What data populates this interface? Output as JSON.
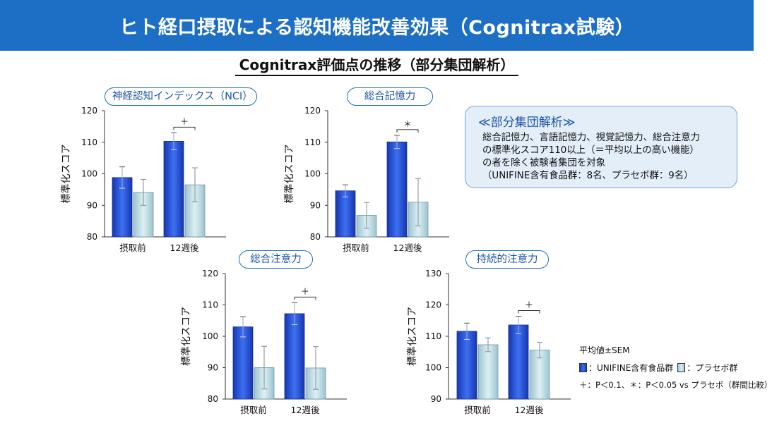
{
  "header": {
    "title": "ヒト経口摂取による認知機能改善効果（Cognitrax試験）"
  },
  "subtitle": "Cognitrax評価点の推移（部分集団解析）",
  "note": {
    "heading": "≪部分集団解析≫",
    "lines": [
      "総合記憶力、言語記憶力、視覚記憶力、総合注意力",
      "の標準化スコア110以上（＝平均以上の高い機能）",
      "の者を除く被験者集団を対象",
      "（UNIFINE含有食品群：8名、プラセボ群：9名）"
    ]
  },
  "legend": {
    "stat_label": "平均値±SEM",
    "series_a": "：UNIFINE含有食品群",
    "series_b": "：プラセボ群",
    "significance": "＋：P＜0.1、＊：P＜0.05 vs プラセボ（群間比較）"
  },
  "colors": {
    "banner": "#1d6fc5",
    "unifine": "#2a55e0",
    "placebo": "#c4e3ea",
    "title_border": "#1d6fc5"
  },
  "chart_data": [
    {
      "type": "bar",
      "title": "神経認知インデックス（NCI）",
      "ylabel": "標準化スコア",
      "categories": [
        "摂取前",
        "12週後"
      ],
      "ylim": [
        80,
        120
      ],
      "yticks": [
        80,
        90,
        100,
        110,
        120
      ],
      "series": [
        {
          "name": "UNIFINE含有食品群",
          "values": [
            98.8,
            110.3
          ],
          "errors": [
            3.4,
            2.7
          ]
        },
        {
          "name": "プラセボ群",
          "values": [
            94.1,
            96.5
          ],
          "errors": [
            4.1,
            5.4
          ]
        }
      ],
      "significance": [
        "",
        "＋"
      ]
    },
    {
      "type": "bar",
      "title": "総合記憶力",
      "ylabel": "標準化スコア",
      "categories": [
        "摂取前",
        "12週後"
      ],
      "ylim": [
        80,
        120
      ],
      "yticks": [
        80,
        90,
        100,
        110,
        120
      ],
      "series": [
        {
          "name": "UNIFINE含有食品群",
          "values": [
            94.6,
            110.1
          ],
          "errors": [
            1.9,
            2.1
          ]
        },
        {
          "name": "プラセボ群",
          "values": [
            86.8,
            91.0
          ],
          "errors": [
            4.1,
            7.5
          ]
        }
      ],
      "significance": [
        "",
        "＊"
      ]
    },
    {
      "type": "bar",
      "title": "総合注意力",
      "ylabel": "標準化スコア",
      "categories": [
        "摂取前",
        "12週後"
      ],
      "ylim": [
        80,
        120
      ],
      "yticks": [
        80,
        90,
        100,
        110,
        120
      ],
      "series": [
        {
          "name": "UNIFINE含有食品群",
          "values": [
            103.0,
            107.2
          ],
          "errors": [
            3.2,
            3.5
          ]
        },
        {
          "name": "プラセボ群",
          "values": [
            90.0,
            89.9
          ],
          "errors": [
            6.8,
            6.8
          ]
        }
      ],
      "significance": [
        "",
        "＋"
      ]
    },
    {
      "type": "bar",
      "title": "持続的注意力",
      "ylabel": "標準化スコア",
      "categories": [
        "摂取前",
        "12週後"
      ],
      "ylim": [
        90,
        130
      ],
      "yticks": [
        90,
        100,
        110,
        120,
        130
      ],
      "series": [
        {
          "name": "UNIFINE含有食品群",
          "values": [
            111.6,
            113.6
          ],
          "errors": [
            2.6,
            2.8
          ]
        },
        {
          "name": "プラセボ群",
          "values": [
            107.3,
            105.6
          ],
          "errors": [
            2.2,
            2.5
          ]
        }
      ],
      "significance": [
        "",
        "＋"
      ]
    }
  ]
}
